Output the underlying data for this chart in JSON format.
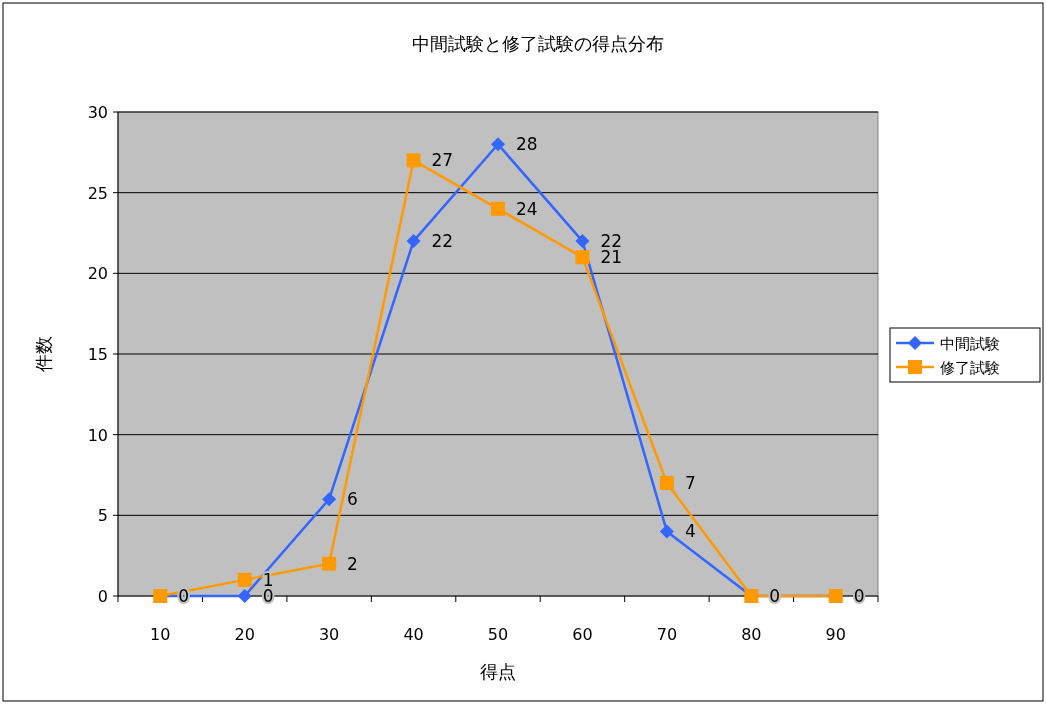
{
  "chart_data": {
    "type": "line",
    "title": "中間試験と修了試験の得点分布",
    "xlabel": "得点",
    "ylabel": "件数",
    "categories": [
      "10",
      "20",
      "30",
      "40",
      "50",
      "60",
      "70",
      "80",
      "90"
    ],
    "series": [
      {
        "name": "中間試験",
        "color": "#3366ff",
        "marker": "diamond",
        "values": [
          0,
          0,
          6,
          22,
          28,
          22,
          4,
          0,
          0
        ],
        "value_labels": [
          null,
          "0",
          "6",
          "22",
          "28",
          "22",
          "4",
          null,
          null
        ]
      },
      {
        "name": "修了試験",
        "color": "#ff9900",
        "marker": "square",
        "values": [
          0,
          1,
          2,
          27,
          24,
          21,
          7,
          0,
          0
        ],
        "value_labels": [
          "0",
          "1",
          "2",
          "27",
          "24",
          "21",
          "7",
          "0",
          "0"
        ]
      }
    ],
    "ylim": [
      0,
      30
    ],
    "yticks": [
      0,
      5,
      10,
      15,
      20,
      25,
      30
    ],
    "grid": "y",
    "legend": "right",
    "line_style": "solid"
  }
}
